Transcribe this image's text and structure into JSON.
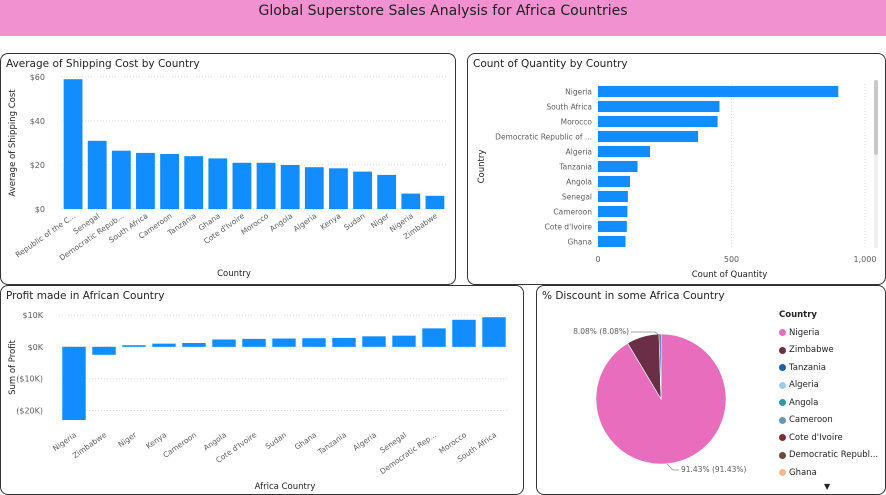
{
  "header": {
    "title": "Global Superstore Sales Analysis for Africa Countries"
  },
  "colors": {
    "bar": "#118dff",
    "header_bg": "#f191d0"
  },
  "chart_data": [
    {
      "id": "shipping",
      "type": "bar",
      "title": "Average of Shipping Cost by Country",
      "xlabel": "Country",
      "ylabel": "Average of Shipping Cost",
      "categories": [
        "Republic of the C...",
        "Senegal",
        "Democratic Repub...",
        "South Africa",
        "Cameroon",
        "Tanzania",
        "Ghana",
        "Cote d'Ivoire",
        "Morocco",
        "Angola",
        "Algeria",
        "Kenya",
        "Sudan",
        "Niger",
        "Nigeria",
        "Zimbabwe"
      ],
      "values": [
        59,
        31,
        26.5,
        25.5,
        25,
        24,
        23,
        21,
        21,
        20,
        19,
        18.5,
        17,
        15.5,
        7,
        6
      ],
      "ylim": [
        0,
        60
      ],
      "yticks": [
        0,
        20,
        40,
        60
      ],
      "ytick_labels": [
        "$0",
        "$20",
        "$40",
        "$60"
      ],
      "grid": true
    },
    {
      "id": "quantity",
      "type": "bar",
      "orientation": "horizontal",
      "title": "Count of Quantity by Country",
      "xlabel": "Count of Quantity",
      "ylabel": "Country",
      "categories": [
        "Nigeria",
        "South Africa",
        "Morocco",
        "Democratic Republic of ...",
        "Algeria",
        "Tanzania",
        "Angola",
        "Senegal",
        "Cameroon",
        "Cote d'Ivoire",
        "Ghana"
      ],
      "values": [
        900,
        455,
        448,
        375,
        195,
        148,
        120,
        112,
        110,
        108,
        103
      ],
      "xlim": [
        0,
        1000
      ],
      "xticks": [
        0,
        500,
        1000
      ],
      "xtick_labels": [
        "0",
        "500",
        "1,000"
      ],
      "grid": true
    },
    {
      "id": "profit",
      "type": "bar",
      "title": "Profit made in African Country",
      "xlabel": "Africa Country",
      "ylabel": "Sum of Profit",
      "categories": [
        "Nigeria",
        "Zimbabwe",
        "Niger",
        "Kenya",
        "Cameroon",
        "Angola",
        "Cote d'Ivoire",
        "Sudan",
        "Ghana",
        "Tanzania",
        "Algeria",
        "Senegal",
        "Democratic Rep...",
        "Morocco",
        "South Africa"
      ],
      "values": [
        -23000,
        -2500,
        500,
        1000,
        1200,
        2300,
        2500,
        2600,
        2700,
        2800,
        3300,
        3500,
        5800,
        8500,
        9300
      ],
      "ylim": [
        -23000,
        10000
      ],
      "yticks": [
        10000,
        0,
        -10000,
        -20000
      ],
      "ytick_labels": [
        "$10K",
        "$0K",
        "($10K)",
        "($20K)"
      ],
      "grid": true
    },
    {
      "id": "discount",
      "type": "pie",
      "title": "% Discount in some Africa Country",
      "slices": [
        {
          "name": "Nigeria",
          "value": 91.43,
          "label": "91.43% (91.43%)",
          "color": "#e96dbd"
        },
        {
          "name": "Zimbabwe",
          "value": 8.08,
          "label": "8.08% (8.08%)",
          "color": "#6b2e47"
        },
        {
          "name": "Tanzania",
          "value": 0.49,
          "label": "",
          "color": "#1f5fa8"
        }
      ],
      "legend": {
        "title": "Country",
        "position": "right",
        "items": [
          {
            "name": "Nigeria",
            "color": "#e96dbd"
          },
          {
            "name": "Zimbabwe",
            "color": "#6b2e47"
          },
          {
            "name": "Tanzania",
            "color": "#1f5fa8"
          },
          {
            "name": "Algeria",
            "color": "#9fcdf0"
          },
          {
            "name": "Angola",
            "color": "#2b9aa8"
          },
          {
            "name": "Cameroon",
            "color": "#5f9cb2"
          },
          {
            "name": "Cote d'Ivoire",
            "color": "#7a2e35"
          },
          {
            "name": "Democratic Republ...",
            "color": "#6e4a3e"
          },
          {
            "name": "Ghana",
            "color": "#f3b88a"
          }
        ]
      }
    }
  ]
}
